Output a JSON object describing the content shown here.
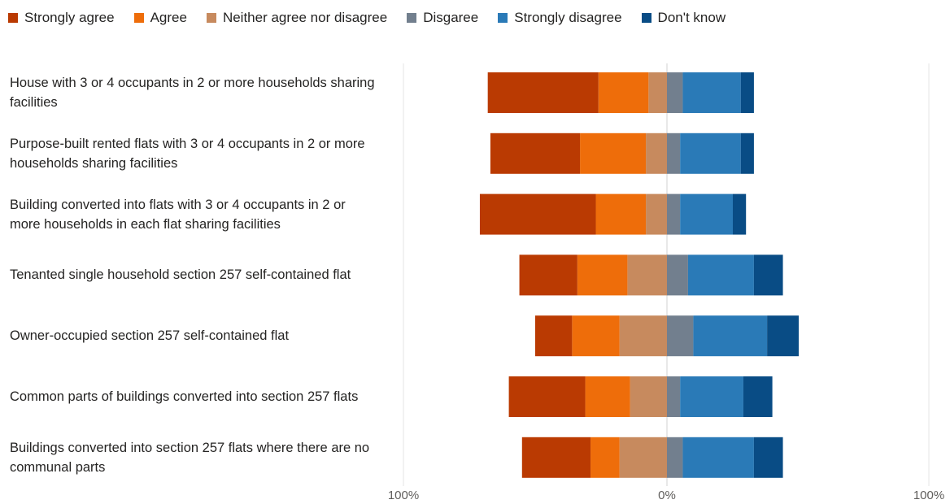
{
  "chart_data": {
    "type": "bar",
    "orientation": "horizontal",
    "stacking": "diverging",
    "legend_position": "top-left",
    "xlim": [
      -100,
      100
    ],
    "x_ticks": [
      "100%",
      "0%",
      "100%"
    ],
    "categories": [
      "House with 3 or 4 occupants in 2 or more households sharing facilities",
      "Purpose-built rented flats with 3 or 4 occupants in 2 or more households sharing facilities",
      "Building converted into flats with 3 or 4 occupants in 2 or more households in each flat sharing facilities",
      "Tenanted single household section 257 self-contained flat",
      "Owner-occupied section 257 self-contained flat",
      "Common parts of buildings converted into section 257 flats",
      "Buildings converted into section 257 flats where there are no communal parts"
    ],
    "series": [
      {
        "name": "Strongly agree",
        "color": "#BA3A02",
        "side": "left",
        "values": [
          42,
          34,
          44,
          22,
          14,
          29,
          26
        ]
      },
      {
        "name": "Agree",
        "color": "#EE6D0A",
        "side": "left",
        "values": [
          19,
          25,
          19,
          19,
          18,
          17,
          11
        ]
      },
      {
        "name": "Neither agree nor disagree",
        "color": "#C78A5E",
        "side": "left",
        "values": [
          7,
          8,
          8,
          15,
          18,
          14,
          18
        ]
      },
      {
        "name": "Disgaree",
        "color": "#727F8E",
        "side": "right",
        "values": [
          6,
          5,
          5,
          8,
          10,
          5,
          6
        ]
      },
      {
        "name": "Strongly disagree",
        "color": "#2A7AB7",
        "side": "right",
        "values": [
          22,
          23,
          20,
          25,
          28,
          24,
          27
        ]
      },
      {
        "name": "Don't know",
        "color": "#094C85",
        "side": "right",
        "values": [
          5,
          5,
          5,
          11,
          12,
          11,
          11
        ]
      }
    ]
  }
}
